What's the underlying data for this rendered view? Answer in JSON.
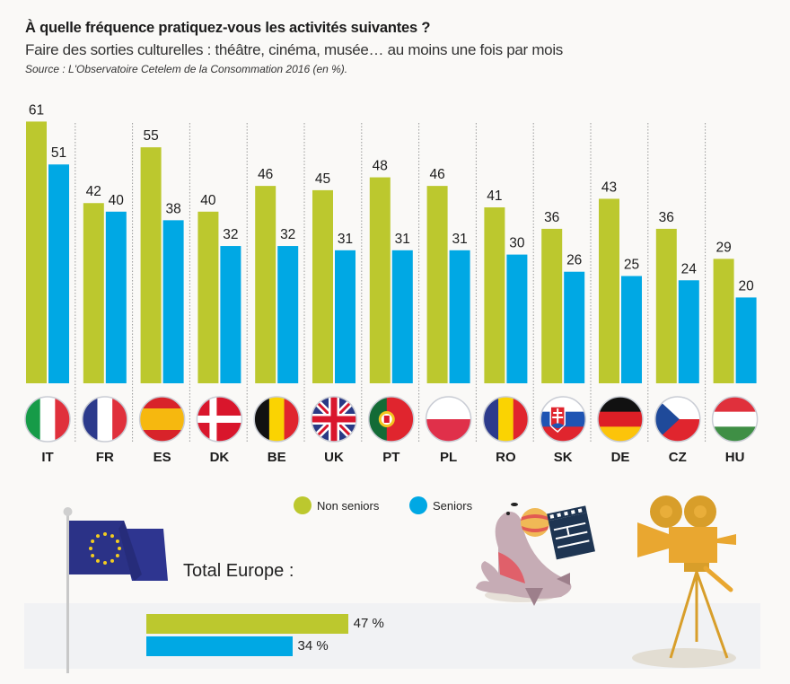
{
  "header": {
    "title": "À quelle fréquence pratiquez-vous les activités suivantes ?",
    "subtitle": "Faire des sorties culturelles : théâtre, cinéma, musée… au moins une fois par mois",
    "source": "Source : L'Observatoire Cetelem de la Consommation 2016 (en %)."
  },
  "colors": {
    "non_seniors": "#bcc82e",
    "seniors": "#00a8e4"
  },
  "legend": [
    {
      "label": "Non seniors",
      "color": "#bcc82e"
    },
    {
      "label": "Seniors",
      "color": "#00a8e4"
    }
  ],
  "total": {
    "label": "Total Europe :",
    "non_seniors": 47,
    "seniors": 34,
    "non_seniors_text": "47 %",
    "seniors_text": "34 %"
  },
  "illustrations": [
    "eu-flag",
    "seal-with-ball",
    "clapperboard",
    "film-camera-on-tripod"
  ],
  "chart_data": {
    "type": "bar",
    "title": "À quelle fréquence pratiquez-vous les activités suivantes ?",
    "subtitle": "Faire des sorties culturelles : théâtre, cinéma, musée… au moins une fois par mois",
    "xlabel": "",
    "ylabel": "%",
    "ylim": [
      0,
      65
    ],
    "grid": false,
    "legend_position": "bottom-center",
    "categories": [
      "IT",
      "FR",
      "ES",
      "DK",
      "BE",
      "UK",
      "PT",
      "PL",
      "RO",
      "SK",
      "DE",
      "CZ",
      "HU"
    ],
    "series": [
      {
        "name": "Non seniors",
        "color": "#bcc82e",
        "values": [
          61,
          42,
          55,
          40,
          46,
          45,
          48,
          46,
          41,
          36,
          43,
          36,
          29
        ]
      },
      {
        "name": "Seniors",
        "color": "#00a8e4",
        "values": [
          51,
          40,
          38,
          32,
          32,
          31,
          31,
          31,
          30,
          26,
          25,
          24,
          20
        ]
      }
    ]
  }
}
